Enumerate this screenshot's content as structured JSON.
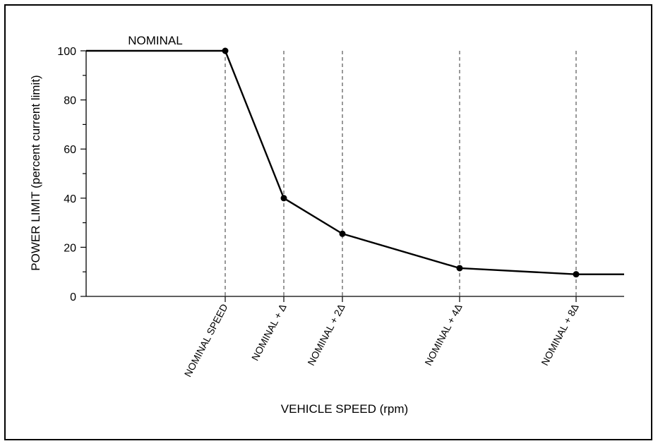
{
  "chart_data": {
    "type": "line",
    "xlabel": "VEHICLE SPEED  (rpm)",
    "ylabel": "POWER LIMIT  (percent current limit)",
    "ylim": [
      0,
      100
    ],
    "yticks": [
      "0",
      "20",
      "40",
      "60",
      "80",
      "100"
    ],
    "categories": [
      "NOMINAL SPEED",
      "NOMINAL + Δ",
      "NOMINAL + 2Δ",
      "NOMINAL + 4Δ",
      "NOMINAL + 8Δ"
    ],
    "x_relative_delta": [
      0,
      1,
      2,
      4,
      8
    ],
    "values": [
      100,
      40,
      25.5,
      11.5,
      9
    ],
    "lead_in_value": 100,
    "tail_value": 9,
    "annotation": "NOMINAL",
    "grid": "dashed vertical lines at category positions"
  }
}
